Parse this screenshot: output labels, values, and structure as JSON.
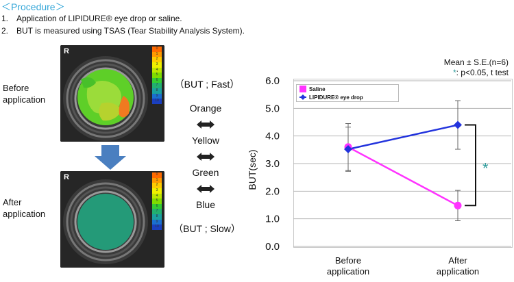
{
  "procedure": {
    "title": "＜Procedure＞",
    "steps": [
      {
        "num": "1.",
        "text": "Application of LIPIDURE® eye drop or saline."
      },
      {
        "num": "2.",
        "text": "BUT is measured using TSAS (Tear Stability Analysis System)."
      }
    ]
  },
  "left_panel": {
    "before_label_1": "Before",
    "before_label_2": "application",
    "after_label_1": "After",
    "after_label_2": "application",
    "eye_corner_label": "R",
    "scale_ticks": [
      "0",
      "1",
      "2",
      "3",
      "4",
      "5",
      "6",
      "7",
      "8",
      "9",
      "10"
    ],
    "scale_colors": [
      "#ff6a00",
      "#ff9a00",
      "#ffcc00",
      "#f0f000",
      "#bde600",
      "#7fdc00",
      "#33cc33",
      "#22b070",
      "#1aa0a0",
      "#1a6fd0",
      "#1a3fc0"
    ]
  },
  "middle_panel": {
    "fast_label": "（BUT ; Fast）",
    "slow_label": "（BUT ; Slow）",
    "levels": [
      "Orange",
      "Yellow",
      "Green",
      "Blue"
    ]
  },
  "annotations": {
    "mean_note": "Mean ± S.E.(n=6)",
    "sig_star": "*",
    "sig_note": ": p<0.05, t test",
    "bracket_star": "*"
  },
  "chart_data": {
    "type": "line",
    "categories": [
      "Before application",
      "After application"
    ],
    "category_lines": [
      [
        "Before",
        "application"
      ],
      [
        "After",
        "application"
      ]
    ],
    "ylabel": "BUT(sec)",
    "ylim": [
      0.0,
      6.0
    ],
    "yticks": [
      "0.0",
      "1.0",
      "2.0",
      "3.0",
      "4.0",
      "5.0",
      "6.0"
    ],
    "grid": true,
    "legend_position": "top-left",
    "series": [
      {
        "name": "Saline",
        "color": "#ff33ff",
        "marker": "circle",
        "values": [
          3.6,
          1.48
        ],
        "errors": [
          0.85,
          0.55
        ]
      },
      {
        "name": "LIPIDURE® eye drop",
        "color": "#2233dd",
        "marker": "diamond",
        "values": [
          3.52,
          4.4
        ],
        "errors": [
          0.8,
          0.88
        ]
      }
    ]
  }
}
